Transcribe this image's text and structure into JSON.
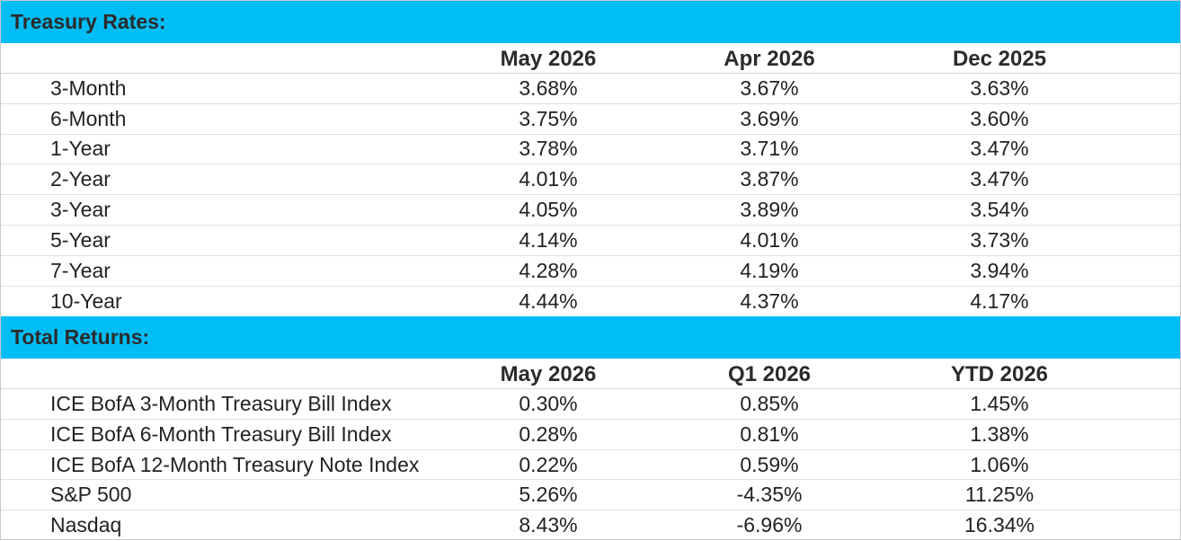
{
  "treasury": {
    "title": "Treasury Rates:",
    "columns": [
      "May 2026",
      "Apr 2026",
      "Dec 2025"
    ],
    "rows": [
      {
        "label": "3-Month",
        "values": [
          "3.68%",
          "3.67%",
          "3.63%"
        ]
      },
      {
        "label": "6-Month",
        "values": [
          "3.75%",
          "3.69%",
          "3.60%"
        ]
      },
      {
        "label": "1-Year",
        "values": [
          "3.78%",
          "3.71%",
          "3.47%"
        ]
      },
      {
        "label": "2-Year",
        "values": [
          "4.01%",
          "3.87%",
          "3.47%"
        ]
      },
      {
        "label": "3-Year",
        "values": [
          "4.05%",
          "3.89%",
          "3.54%"
        ]
      },
      {
        "label": "5-Year",
        "values": [
          "4.14%",
          "4.01%",
          "3.73%"
        ]
      },
      {
        "label": "7-Year",
        "values": [
          "4.28%",
          "4.19%",
          "3.94%"
        ]
      },
      {
        "label": "10-Year",
        "values": [
          "4.44%",
          "4.37%",
          "4.17%"
        ]
      }
    ]
  },
  "returns": {
    "title": "Total Returns:",
    "columns": [
      "May 2026",
      "Q1 2026",
      "YTD 2026"
    ],
    "rows": [
      {
        "label": "ICE BofA 3-Month Treasury Bill Index",
        "values": [
          "0.30%",
          "0.85%",
          "1.45%"
        ]
      },
      {
        "label": "ICE BofA 6-Month Treasury Bill Index",
        "values": [
          "0.28%",
          "0.81%",
          "1.38%"
        ]
      },
      {
        "label": "ICE BofA 12-Month Treasury Note Index",
        "values": [
          "0.22%",
          "0.59%",
          "1.06%"
        ]
      },
      {
        "label": "S&P 500",
        "values": [
          "5.26%",
          "-4.35%",
          "11.25%"
        ]
      },
      {
        "label": "Nasdaq",
        "values": [
          "8.43%",
          "-6.96%",
          "16.34%"
        ]
      }
    ]
  },
  "colors": {
    "header_band": "#00bdf6",
    "text": "#222222",
    "rule": "#e0e0e0"
  }
}
